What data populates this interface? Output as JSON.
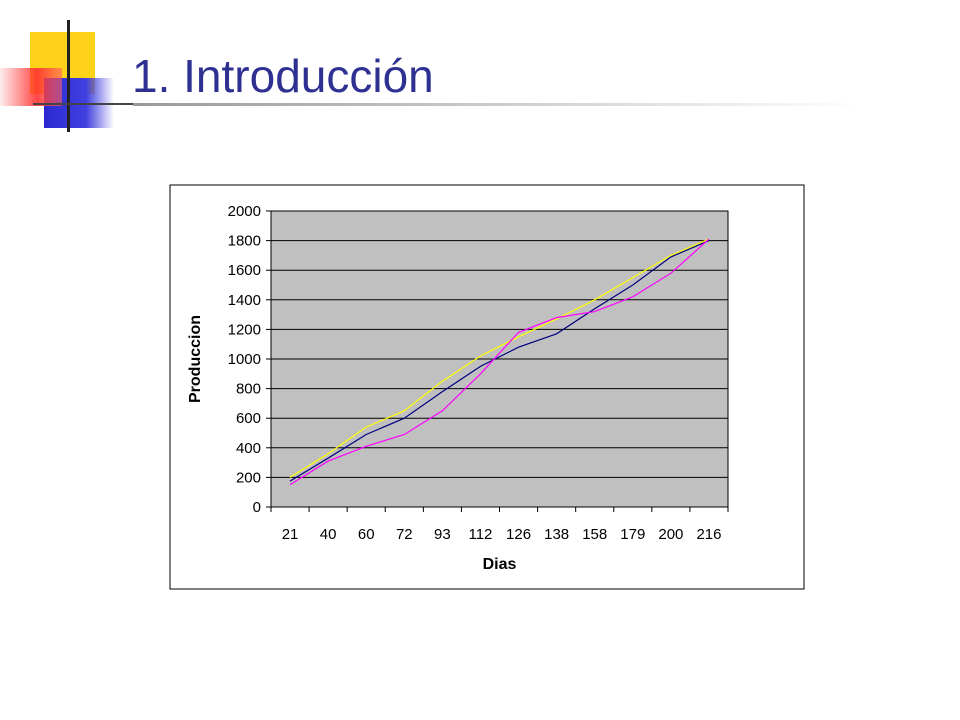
{
  "title": "1. Introducción",
  "chart_data": {
    "type": "line",
    "x_label": "Dias",
    "y_label": "Produccion",
    "categories": [
      "21",
      "40",
      "60",
      "72",
      "93",
      "112",
      "126",
      "138",
      "158",
      "179",
      "200",
      "216"
    ],
    "series": [
      {
        "color": "#000080",
        "values": [
          175,
          330,
          490,
          600,
          780,
          950,
          1080,
          1170,
          1340,
          1500,
          1690,
          1800
        ]
      },
      {
        "color": "#ffff00",
        "values": [
          200,
          360,
          540,
          650,
          850,
          1020,
          1150,
          1270,
          1400,
          1550,
          1700,
          1810
        ]
      },
      {
        "color": "#ff00ff",
        "values": [
          150,
          310,
          410,
          490,
          650,
          900,
          1180,
          1280,
          1320,
          1420,
          1580,
          1810
        ]
      }
    ],
    "ylim": [
      0,
      2000
    ],
    "yticks": [
      0,
      200,
      400,
      600,
      800,
      1000,
      1200,
      1400,
      1600,
      1800,
      2000
    ],
    "grid": true
  }
}
